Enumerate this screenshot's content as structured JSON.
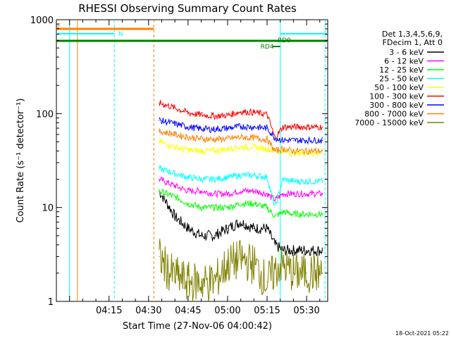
{
  "chart_data": {
    "type": "line",
    "title": "RHESSI Observing Summary Count Rates",
    "xlabel": "Start Time (27-Nov-06 04:00:42)",
    "ylabel": "Count Rate (s⁻¹ detector⁻¹)",
    "y_scale": "log",
    "xlim": [
      "03:55",
      "05:38"
    ],
    "ylim": [
      1,
      1000
    ],
    "x_ticks": [
      "04:15",
      "04:30",
      "04:45",
      "05:00",
      "05:15",
      "05:30"
    ],
    "y_ticks": [
      "1",
      "10",
      "100",
      "1000"
    ],
    "legend_title": [
      "Det 1,3,4,5,6,9,",
      "FDecim 1, Att 0"
    ],
    "legend_placement": "right",
    "series": [
      {
        "name": "3 - 6 keV",
        "color": "#000000",
        "x": [
          "04:34",
          "04:38",
          "04:40",
          "04:45",
          "04:50",
          "04:55",
          "05:00",
          "05:05",
          "05:10",
          "05:15",
          "05:18",
          "05:21",
          "05:25",
          "05:30",
          "05:36"
        ],
        "y": [
          15,
          10,
          8,
          6,
          5,
          5,
          6,
          7,
          6,
          6,
          4,
          3.5,
          3.5,
          3.5,
          3.5
        ]
      },
      {
        "name": "6 - 12 keV",
        "color": "#ff00ff",
        "x": [
          "04:34",
          "04:40",
          "04:45",
          "04:50",
          "04:55",
          "05:00",
          "05:05",
          "05:10",
          "05:15",
          "05:18",
          "05:21",
          "05:25",
          "05:30",
          "05:36"
        ],
        "y": [
          20,
          17,
          15,
          15,
          14,
          14,
          15,
          15,
          14,
          12,
          14,
          14,
          14,
          14
        ]
      },
      {
        "name": "12 - 25 keV",
        "color": "#00ff00",
        "x": [
          "04:34",
          "04:40",
          "04:45",
          "04:50",
          "04:55",
          "05:00",
          "05:05",
          "05:10",
          "05:15",
          "05:18",
          "05:21",
          "05:25",
          "05:30",
          "05:36"
        ],
        "y": [
          15,
          13,
          11,
          10,
          10,
          10,
          11,
          11,
          10,
          8,
          9,
          8.5,
          8.5,
          8.5
        ]
      },
      {
        "name": "25 - 50 keV",
        "color": "#00ffff",
        "x": [
          "04:34",
          "04:40",
          "04:45",
          "04:50",
          "04:55",
          "05:00",
          "05:05",
          "05:10",
          "05:15",
          "05:18",
          "05:21",
          "05:25",
          "05:30",
          "05:36"
        ],
        "y": [
          26,
          23,
          21,
          20,
          20,
          21,
          22,
          22,
          21,
          10,
          20,
          19,
          19,
          19
        ]
      },
      {
        "name": "50 - 100 keV",
        "color": "#ffff00",
        "x": [
          "04:34",
          "04:40",
          "04:45",
          "04:50",
          "04:55",
          "05:00",
          "05:05",
          "05:10",
          "05:15",
          "05:18",
          "05:21",
          "05:25",
          "05:30",
          "05:36"
        ],
        "y": [
          50,
          44,
          41,
          40,
          40,
          42,
          44,
          44,
          42,
          40,
          40,
          38,
          38,
          38
        ]
      },
      {
        "name": "100 - 300 keV",
        "color": "#ff0000",
        "x": [
          "04:34",
          "04:40",
          "04:45",
          "04:50",
          "04:55",
          "05:00",
          "05:05",
          "05:10",
          "05:15",
          "05:18",
          "05:21",
          "05:25",
          "05:30",
          "05:36"
        ],
        "y": [
          130,
          115,
          102,
          97,
          94,
          96,
          105,
          103,
          98,
          55,
          72,
          72,
          72,
          72
        ]
      },
      {
        "name": "300 - 800 keV",
        "color": "#0000ff",
        "x": [
          "04:34",
          "04:40",
          "04:45",
          "04:50",
          "04:55",
          "05:00",
          "05:05",
          "05:10",
          "05:15",
          "05:18",
          "05:21",
          "05:25",
          "05:30",
          "05:36"
        ],
        "y": [
          85,
          78,
          72,
          69,
          68,
          70,
          73,
          72,
          70,
          55,
          52,
          52,
          52,
          52
        ]
      },
      {
        "name": "800 - 7000 keV",
        "color": "#ff8000",
        "x": [
          "04:34",
          "04:40",
          "04:45",
          "04:50",
          "04:55",
          "05:00",
          "05:05",
          "05:10",
          "05:15",
          "05:18",
          "05:21",
          "05:25",
          "05:30",
          "05:36"
        ],
        "y": [
          65,
          60,
          56,
          54,
          53,
          54,
          56,
          55,
          53,
          40,
          42,
          40,
          40,
          40
        ]
      },
      {
        "name": "7000 - 15000 keV",
        "color": "#808000",
        "x": [
          "04:34",
          "04:38",
          "04:45",
          "04:50",
          "04:55",
          "05:00",
          "05:05",
          "05:10",
          "05:15",
          "05:20",
          "05:25",
          "05:30",
          "05:36"
        ],
        "y": [
          3,
          2,
          1.6,
          1.6,
          1.6,
          2.5,
          2.8,
          2.5,
          1.6,
          2.5,
          2,
          2,
          2
        ]
      }
    ],
    "annotations": [
      {
        "text": "N",
        "color": "#00ffff"
      },
      {
        "text": "RD9",
        "color": "#008000"
      },
      {
        "text": "RD4",
        "color": "#008000"
      },
      {
        "text": "E",
        "color": "#ff8000"
      }
    ]
  },
  "footer_timestamp": "18-Oct-2021 05:22"
}
